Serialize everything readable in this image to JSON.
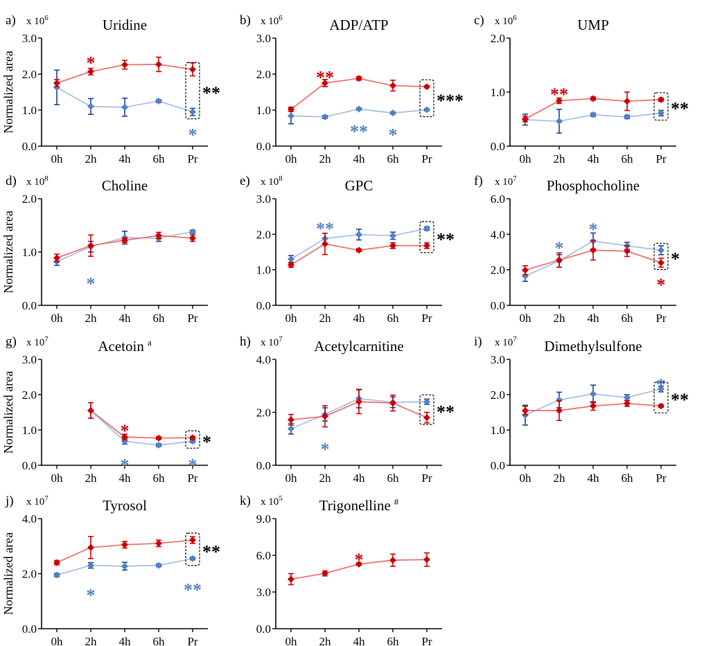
{
  "colors": {
    "red": "#cc0000",
    "redLine": "#f07070",
    "blue": "#4f82c6",
    "blueLine": "#a9c0e0",
    "darkBlue": "#1f3c88",
    "black": "#000000"
  },
  "chart_data": [
    {
      "id": "a",
      "letter": "a)",
      "title": "Uridine",
      "superscript": "",
      "type": "line",
      "categories": [
        "0h",
        "2h",
        "4h",
        "6h",
        "Pr"
      ],
      "scale": "x 10",
      "exp": "6",
      "ylim": [
        0,
        3.0
      ],
      "yticks": [
        "0.0",
        "1.0",
        "2.0",
        "3.0"
      ],
      "ylabel": "Normalized area",
      "series": [
        {
          "color": "red",
          "values": [
            1.75,
            2.07,
            2.26,
            2.27,
            2.13
          ],
          "err": [
            0.1,
            0.09,
            0.12,
            0.2,
            0.18
          ]
        },
        {
          "color": "blue",
          "values": [
            1.63,
            1.1,
            1.08,
            1.25,
            0.95
          ],
          "err": [
            0.48,
            0.22,
            0.25,
            0.04,
            0.1
          ]
        }
      ],
      "stars": [
        {
          "x": "2h",
          "y": 2.45,
          "text": "*",
          "color": "red"
        },
        {
          "x": "Pr",
          "y": 0.45,
          "text": "*",
          "color": "blue"
        }
      ],
      "box": "**"
    },
    {
      "id": "b",
      "letter": "b)",
      "title": "ADP/ATP",
      "superscript": "",
      "type": "line",
      "categories": [
        "0h",
        "2h",
        "4h",
        "6h",
        "Pr"
      ],
      "scale": "x 10",
      "exp": "6",
      "ylim": [
        0,
        3.0
      ],
      "yticks": [
        "0.0",
        "1.0",
        "2.0",
        "3.0"
      ],
      "ylabel": "",
      "series": [
        {
          "color": "red",
          "values": [
            1.02,
            1.75,
            1.88,
            1.68,
            1.65
          ],
          "err": [
            0.06,
            0.1,
            0.05,
            0.15,
            0.03
          ]
        },
        {
          "color": "blue",
          "values": [
            0.84,
            0.81,
            1.03,
            0.92,
            1.01
          ],
          "err": [
            0.22,
            0.04,
            0.03,
            0.03,
            0.03
          ]
        }
      ],
      "stars": [
        {
          "x": "2h",
          "y": 2.05,
          "text": "**",
          "color": "red"
        },
        {
          "x": "4h",
          "y": 0.55,
          "text": "**",
          "color": "blue"
        },
        {
          "x": "6h",
          "y": 0.45,
          "text": "*",
          "color": "blue"
        }
      ],
      "box": "***"
    },
    {
      "id": "c",
      "letter": "c)",
      "title": "UMP",
      "superscript": "",
      "type": "line",
      "categories": [
        "0h",
        "2h",
        "4h",
        "6h",
        "Pr"
      ],
      "scale": "x 10",
      "exp": "6",
      "ylim": [
        0,
        2.0
      ],
      "yticks": [
        "0.0",
        "1.0",
        "2.0"
      ],
      "ylabel": "",
      "series": [
        {
          "color": "red",
          "values": [
            0.5,
            0.84,
            0.88,
            0.83,
            0.86
          ],
          "err": [
            0.05,
            0.05,
            0.03,
            0.17,
            0.03
          ]
        },
        {
          "color": "blue",
          "values": [
            0.49,
            0.46,
            0.58,
            0.54,
            0.61
          ],
          "err": [
            0.1,
            0.22,
            0.03,
            0.03,
            0.05
          ]
        }
      ],
      "stars": [
        {
          "x": "2h",
          "y": 1.05,
          "text": "**",
          "color": "red"
        }
      ],
      "box": "**"
    },
    {
      "id": "d",
      "letter": "d)",
      "title": "Choline",
      "superscript": "",
      "type": "line",
      "categories": [
        "0h",
        "2h",
        "4h",
        "6h",
        "Pr"
      ],
      "scale": "x 10",
      "exp": "8",
      "ylim": [
        0,
        2.0
      ],
      "yticks": [
        "0.0",
        "1.0",
        "2.0"
      ],
      "ylabel": "Normalized area",
      "series": [
        {
          "color": "red",
          "values": [
            0.89,
            1.12,
            1.22,
            1.31,
            1.26
          ],
          "err": [
            0.07,
            0.2,
            0.04,
            0.06,
            0.06
          ]
        },
        {
          "color": "blue",
          "values": [
            0.82,
            1.1,
            1.27,
            1.26,
            1.38
          ],
          "err": [
            0.07,
            0.1,
            0.12,
            0.06,
            0.03
          ]
        }
      ],
      "stars": [
        {
          "x": "2h",
          "y": 0.5,
          "text": "*",
          "color": "blue"
        }
      ],
      "box": ""
    },
    {
      "id": "e",
      "letter": "e)",
      "title": "GPC",
      "superscript": "",
      "type": "line",
      "categories": [
        "0h",
        "2h",
        "4h",
        "6h",
        "Pr"
      ],
      "scale": "x 10",
      "exp": "8",
      "ylim": [
        0,
        3.0
      ],
      "yticks": [
        "0.0",
        "1.0",
        "2.0",
        "3.0"
      ],
      "ylabel": "",
      "series": [
        {
          "color": "red",
          "values": [
            1.14,
            1.73,
            1.55,
            1.68,
            1.68
          ],
          "err": [
            0.07,
            0.3,
            0.04,
            0.08,
            0.08
          ]
        },
        {
          "color": "blue",
          "values": [
            1.3,
            1.88,
            1.99,
            1.96,
            2.16
          ],
          "err": [
            0.1,
            0.15,
            0.15,
            0.1,
            0.05
          ]
        }
      ],
      "stars": [
        {
          "x": "2h",
          "y": 2.3,
          "text": "**",
          "color": "blue"
        }
      ],
      "box": "**"
    },
    {
      "id": "f",
      "letter": "f)",
      "title": "Phosphocholine",
      "superscript": "",
      "type": "line",
      "categories": [
        "0h",
        "2h",
        "4h",
        "6h",
        "Pr"
      ],
      "scale": "x 10",
      "exp": "7",
      "ylim": [
        0,
        6.0
      ],
      "yticks": [
        "0.0",
        "2.0",
        "4.0",
        "6.0"
      ],
      "ylabel": "",
      "series": [
        {
          "color": "red",
          "values": [
            1.98,
            2.55,
            3.1,
            3.05,
            2.4
          ],
          "err": [
            0.25,
            0.4,
            0.55,
            0.3,
            0.25
          ]
        },
        {
          "color": "blue",
          "values": [
            1.65,
            2.5,
            3.62,
            3.35,
            3.1
          ],
          "err": [
            0.3,
            0.35,
            0.45,
            0.2,
            0.25
          ]
        }
      ],
      "stars": [
        {
          "x": "2h",
          "y": 3.5,
          "text": "*",
          "color": "blue"
        },
        {
          "x": "4h",
          "y": 4.55,
          "text": "*",
          "color": "blue"
        },
        {
          "x": "Pr",
          "y": 1.45,
          "text": "*",
          "color": "red"
        }
      ],
      "box": "*"
    },
    {
      "id": "g",
      "letter": "g)",
      "title": "Acetoin",
      "superscript": "a",
      "type": "line",
      "categories": [
        "0h",
        "2h",
        "4h",
        "6h",
        "Pr"
      ],
      "scale": "x 10",
      "exp": "7",
      "ylim": [
        0,
        3.0
      ],
      "yticks": [
        "0.0",
        "1.0",
        "2.0",
        "3.0"
      ],
      "ylabel": "Normalized area",
      "series": [
        {
          "color": "red",
          "values": [
            null,
            1.55,
            0.8,
            0.77,
            0.78
          ],
          "err": [
            0,
            0.22,
            0.08,
            0.04,
            0.04
          ]
        },
        {
          "color": "blue",
          "values": [
            null,
            1.55,
            0.68,
            0.57,
            0.68
          ],
          "err": [
            0,
            0.22,
            0.08,
            0.04,
            0.04
          ]
        }
      ],
      "stars": [
        {
          "x": "4h",
          "y": 1.12,
          "text": "*",
          "color": "red"
        },
        {
          "x": "4h",
          "y": 0.15,
          "text": "*",
          "color": "blue"
        },
        {
          "x": "Pr",
          "y": 0.15,
          "text": "*",
          "color": "blue"
        }
      ],
      "box": "*"
    },
    {
      "id": "h",
      "letter": "h)",
      "title": "Acetylcarnitine",
      "superscript": "",
      "type": "line",
      "categories": [
        "0h",
        "2h",
        "4h",
        "6h",
        "Pr"
      ],
      "scale": "x 10",
      "exp": "7",
      "ylim": [
        0,
        4.0
      ],
      "yticks": [
        "0.0",
        "2.0",
        "4.0"
      ],
      "ylabel": "",
      "series": [
        {
          "color": "red",
          "values": [
            1.72,
            1.85,
            2.4,
            2.35,
            1.8
          ],
          "err": [
            0.2,
            0.4,
            0.45,
            0.3,
            0.2
          ]
        },
        {
          "color": "blue",
          "values": [
            1.38,
            1.92,
            2.52,
            2.38,
            2.4
          ],
          "err": [
            0.2,
            0.25,
            0.35,
            0.2,
            0.1
          ]
        }
      ],
      "stars": [
        {
          "x": "2h",
          "y": 0.8,
          "text": "*",
          "color": "blue"
        }
      ],
      "box": "**"
    },
    {
      "id": "i",
      "letter": "i)",
      "title": "Dimethylsulfone",
      "superscript": "",
      "type": "line",
      "categories": [
        "0h",
        "2h",
        "4h",
        "6h",
        "Pr"
      ],
      "scale": "x 10",
      "exp": "7",
      "ylim": [
        0,
        3.0
      ],
      "yticks": [
        "0.0",
        "1.0",
        "2.0",
        "3.0"
      ],
      "ylabel": "",
      "series": [
        {
          "color": "red",
          "values": [
            1.55,
            1.55,
            1.68,
            1.75,
            1.68
          ],
          "err": [
            0.12,
            0.28,
            0.12,
            0.08,
            0.04
          ]
        },
        {
          "color": "blue",
          "values": [
            1.42,
            1.85,
            2.02,
            1.92,
            2.16
          ],
          "err": [
            0.28,
            0.22,
            0.25,
            0.08,
            0.08
          ]
        }
      ],
      "stars": [
        {
          "x": "Pr",
          "y": 2.42,
          "text": "*",
          "color": "blue"
        }
      ],
      "box": "**"
    },
    {
      "id": "j",
      "letter": "j)",
      "title": "Tyrosol",
      "superscript": "",
      "type": "line",
      "categories": [
        "0h",
        "2h",
        "4h",
        "6h",
        "Pr"
      ],
      "scale": "x 10",
      "exp": "7",
      "ylim": [
        0,
        4.0
      ],
      "yticks": [
        "0.0",
        "2.0",
        "4.0"
      ],
      "ylabel": "Normalized area",
      "series": [
        {
          "color": "red",
          "values": [
            2.4,
            2.95,
            3.05,
            3.1,
            3.22
          ],
          "err": [
            0.08,
            0.4,
            0.12,
            0.12,
            0.12
          ]
        },
        {
          "color": "blue",
          "values": [
            1.95,
            2.3,
            2.27,
            2.3,
            2.55
          ],
          "err": [
            0.06,
            0.1,
            0.14,
            0.05,
            0.05
          ]
        }
      ],
      "stars": [
        {
          "x": "2h",
          "y": 1.4,
          "text": "*",
          "color": "blue"
        },
        {
          "x": "Pr",
          "y": 1.6,
          "text": "**",
          "color": "blue"
        }
      ],
      "box": "**"
    },
    {
      "id": "k",
      "letter": "k)",
      "title": "Trigonelline",
      "superscript": "#",
      "type": "line",
      "categories": [
        "0h",
        "2h",
        "4h",
        "6h",
        "Pr"
      ],
      "scale": "x 10",
      "exp": "5",
      "ylim": [
        0,
        9.0
      ],
      "yticks": [
        "0.0",
        "3.0",
        "6.0",
        "9.0"
      ],
      "ylabel": "",
      "series": [
        {
          "color": "red",
          "values": [
            4.05,
            4.52,
            5.28,
            5.6,
            5.65
          ],
          "err": [
            0.45,
            0.2,
            0.1,
            0.5,
            0.55
          ]
        }
      ],
      "stars": [
        {
          "x": "4h",
          "y": 6.05,
          "text": "*",
          "color": "red"
        }
      ],
      "box": ""
    }
  ]
}
